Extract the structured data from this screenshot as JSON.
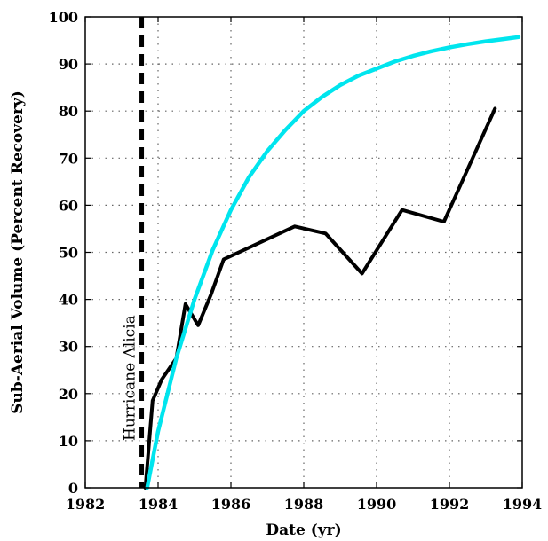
{
  "chart_data": {
    "type": "line",
    "title": "",
    "xlabel": "Date (yr)",
    "ylabel": "Sub-Aerial Volume (Percent Recovery)",
    "xlim": [
      1982,
      1994
    ],
    "ylim": [
      0,
      100
    ],
    "xticks": [
      1982,
      1984,
      1986,
      1988,
      1990,
      1992,
      1994
    ],
    "yticks": [
      0,
      10,
      20,
      30,
      40,
      50,
      60,
      70,
      80,
      90,
      100
    ],
    "x_tick_labels": [
      "1982",
      "1984",
      "1986",
      "1988",
      "1990",
      "1992",
      "1994"
    ],
    "y_tick_labels": [
      "0",
      "10",
      "20",
      "30",
      "40",
      "50",
      "60",
      "70",
      "80",
      "90",
      "100"
    ],
    "grid": true,
    "series": [
      {
        "color": "#000000",
        "style": "solid",
        "x": [
          1983.65,
          1983.85,
          1984.1,
          1984.5,
          1984.75,
          1985.1,
          1985.45,
          1985.8,
          1987.75,
          1988.6,
          1989.6,
          1990.7,
          1991.85,
          1993.25
        ],
        "y": [
          0,
          18.5,
          23,
          27.5,
          39,
          34.5,
          41,
          48.5,
          55.5,
          54,
          45.5,
          59,
          56.5,
          80.5
        ]
      },
      {
        "color": "#00e5ee",
        "style": "solid",
        "x": [
          1983.7,
          1984,
          1984.5,
          1985,
          1985.5,
          1986,
          1986.5,
          1987,
          1987.5,
          1988,
          1988.5,
          1989,
          1989.5,
          1990,
          1990.5,
          1991,
          1991.5,
          1992,
          1992.5,
          1993,
          1993.5,
          1993.9
        ],
        "y": [
          0,
          12,
          27.5,
          40,
          50.5,
          59,
          66,
          71.5,
          76,
          80,
          83,
          85.5,
          87.5,
          89,
          90.5,
          91.7,
          92.7,
          93.5,
          94.2,
          94.8,
          95.3,
          95.7
        ]
      }
    ],
    "annotations": [
      {
        "text": "Hurricane Alicia",
        "x": 1983.55,
        "style": "dashed-vertical-line"
      }
    ]
  }
}
